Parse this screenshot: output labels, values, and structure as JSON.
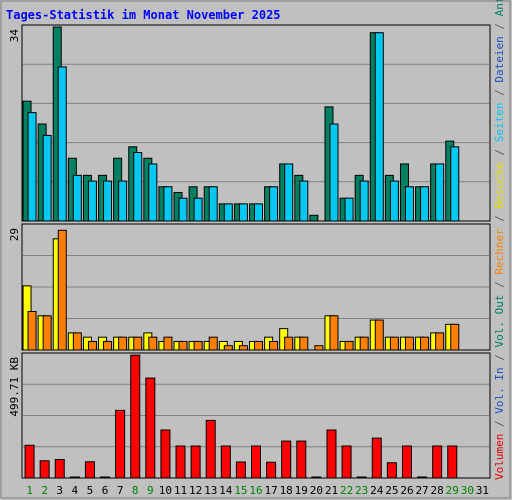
{
  "chart_data": {
    "type": "bar",
    "title": "Tages-Statistik im Monat November 2025",
    "x": [
      "1",
      "2",
      "3",
      "4",
      "5",
      "6",
      "7",
      "8",
      "9",
      "10",
      "11",
      "12",
      "13",
      "14",
      "15",
      "16",
      "17",
      "18",
      "19",
      "20",
      "21",
      "22",
      "23",
      "24",
      "25",
      "26",
      "27",
      "28",
      "29",
      "30",
      "31"
    ],
    "weekend_days": [
      "1",
      "2",
      "8",
      "9",
      "15",
      "16",
      "22",
      "23",
      "29",
      "30"
    ],
    "panels": [
      {
        "name": "top",
        "ymax_label": "34",
        "ylim": [
          0,
          34
        ],
        "series": [
          {
            "name": "Anfragen",
            "color": "#008060",
            "values": [
              21,
              17,
              34,
              11,
              8,
              8,
              11,
              13,
              11,
              6,
              5,
              6,
              6,
              3,
              3,
              3,
              6,
              10,
              8,
              1,
              20,
              4,
              8,
              33,
              8,
              10,
              6,
              10,
              14,
              null,
              null
            ]
          },
          {
            "name": "Seiten",
            "color": "#00c8f0",
            "values": [
              19,
              15,
              27,
              8,
              7,
              7,
              7,
              12,
              10,
              6,
              4,
              4,
              6,
              3,
              3,
              3,
              6,
              10,
              7,
              null,
              17,
              4,
              7,
              33,
              7,
              6,
              6,
              10,
              13,
              null,
              null
            ]
          },
          {
            "name": "Dateien",
            "color": "#2050c0",
            "values": [
              null,
              null,
              null,
              null,
              null,
              null,
              null,
              null,
              null,
              null,
              null,
              null,
              null,
              null,
              null,
              null,
              null,
              null,
              null,
              null,
              null,
              null,
              null,
              null,
              null,
              null,
              null,
              null,
              null,
              null,
              null
            ]
          }
        ]
      },
      {
        "name": "middle",
        "ymax_label": "29",
        "ylim": [
          0,
          29
        ],
        "series": [
          {
            "name": "Besuche",
            "color": "#ffff00",
            "values": [
              15,
              8,
              26,
              4,
              3,
              3,
              3,
              3,
              4,
              2,
              2,
              2,
              2,
              2,
              2,
              2,
              3,
              5,
              3,
              null,
              8,
              2,
              3,
              7,
              3,
              3,
              3,
              4,
              6,
              null,
              null
            ]
          },
          {
            "name": "Rechner",
            "color": "#ff8000",
            "values": [
              9,
              8,
              28,
              4,
              2,
              2,
              3,
              3,
              3,
              3,
              2,
              2,
              3,
              1,
              1,
              2,
              2,
              3,
              3,
              1,
              8,
              2,
              3,
              7,
              3,
              3,
              3,
              4,
              6,
              null,
              null
            ]
          }
        ]
      },
      {
        "name": "bottom",
        "ymax_label": "499.71 KB",
        "ylim": [
          0,
          499.71
        ],
        "series": [
          {
            "name": "Volumen",
            "color": "#ff0000",
            "values": [
              133,
              70,
              75,
              0,
              66,
              3,
              275,
              499,
              406,
              195,
              130,
              130,
              234,
              130,
              65,
              130,
              64,
              150,
              150,
              0,
              195,
              130,
              0,
              162,
              62,
              130,
              0,
              130,
              130,
              null,
              null
            ]
          }
        ]
      }
    ],
    "right_legend": [
      {
        "text": "Volumen",
        "color": "#e00000"
      },
      {
        "text": " / ",
        "color": "#606060"
      },
      {
        "text": "Vol. In",
        "color": "#2050c0"
      },
      {
        "text": " / ",
        "color": "#606060"
      },
      {
        "text": "Vol. Out",
        "color": "#008060"
      },
      {
        "text": " / ",
        "color": "#606060"
      },
      {
        "text": "Rechner",
        "color": "#ff8000"
      },
      {
        "text": " / ",
        "color": "#606060"
      },
      {
        "text": "Besuche",
        "color": "#e0e000"
      },
      {
        "text": " / ",
        "color": "#606060"
      },
      {
        "text": "Seiten",
        "color": "#00c8f0"
      },
      {
        "text": " / ",
        "color": "#606060"
      },
      {
        "text": "Dateien",
        "color": "#2050c0"
      },
      {
        "text": " / ",
        "color": "#606060"
      },
      {
        "text": "Anfragen",
        "color": "#008060"
      }
    ],
    "colors": {
      "title": "#0000ff",
      "plot_bg": "#c0c0c0",
      "grid": "#808080",
      "weekday_label": "#000000",
      "weekend_label": "#008000"
    }
  }
}
